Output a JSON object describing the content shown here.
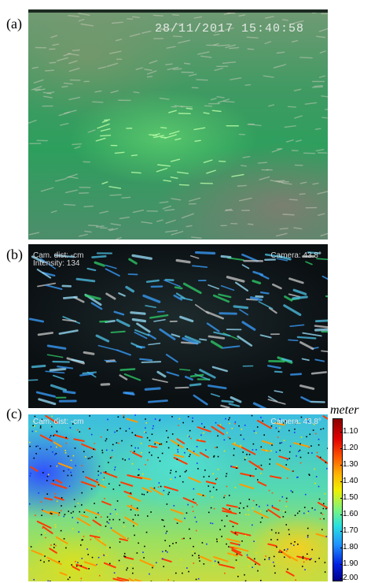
{
  "panels": {
    "a": {
      "label": "(a)",
      "timestamp": "28/11/2017 15:40:58"
    },
    "b": {
      "label": "(b)",
      "cam_dist": "Cam. dist: -cm",
      "intensity": "Intensity: 134",
      "camera": "Camera: 43.8°"
    },
    "c": {
      "label": "(c)",
      "cam_dist": "Cam. dist: -cm",
      "camera": "Camera: 43.8°"
    }
  },
  "colorbar": {
    "title": "meter",
    "ticks": [
      "1.10",
      "1.20",
      "1.30",
      "1.40",
      "1.50",
      "1.60",
      "1.70",
      "1.80",
      "1.90",
      "2.00"
    ],
    "colors": [
      "#8b0000",
      "#e00000",
      "#ff5a00",
      "#ffb400",
      "#f0f000",
      "#7cf47c",
      "#28e0e0",
      "#1e90ff",
      "#0020e0",
      "#00008b"
    ]
  }
}
